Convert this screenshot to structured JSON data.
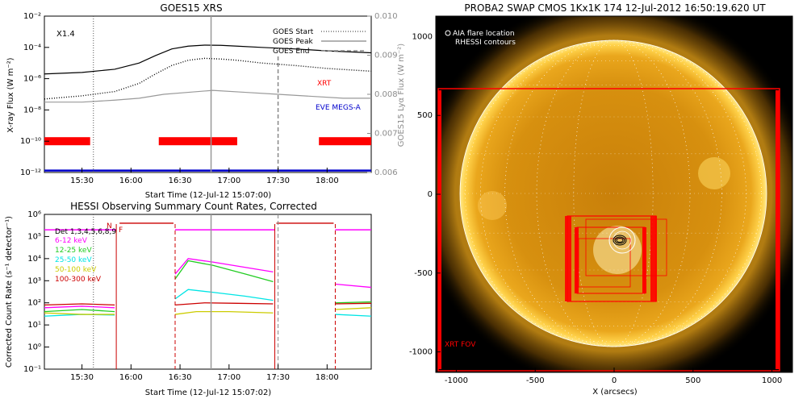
{
  "colors": {
    "red": "#ff0000",
    "blue": "#0000cc",
    "gray": "#999999",
    "magenta": "#ff00ff",
    "green": "#22cc22",
    "cyan": "#00e5e5",
    "yellow": "#cccc00",
    "darkred": "#cc0000",
    "swap_bg": "#000000",
    "swap_disk": "#e0a015"
  },
  "chart_data": [
    {
      "type": "line",
      "title": "GOES15 XRS",
      "xlabel": "Start Time (12-Jul-12 15:07:00)",
      "ylabel": "X-ray Flux (W m⁻²)",
      "ylabel_right": "GOES15 Lyα Flux (W m⁻²)",
      "y_scale": "log",
      "ylim": [
        1e-12,
        0.01
      ],
      "y2lim": [
        0.006,
        0.01
      ],
      "xlim": [
        "15:07",
        "18:27"
      ],
      "x_ticks": [
        "15:30",
        "16:00",
        "16:30",
        "17:00",
        "17:30",
        "18:00"
      ],
      "y_ticks": [
        "10⁻¹²",
        "10⁻¹⁰",
        "10⁻⁸",
        "10⁻⁶",
        "10⁻⁴",
        "10⁻²"
      ],
      "y2_ticks": [
        "0.006",
        "0.007",
        "0.008",
        "0.009",
        "0.010"
      ],
      "annotation": "X1.4",
      "legend": [
        "GOES Start",
        "GOES Peak",
        "GOES End"
      ],
      "legend_placement": "top-right",
      "markers": {
        "start": "15:37",
        "peak": "16:49",
        "end": "17:30"
      },
      "side_labels": [
        "XRT",
        "EVE MEGS-A"
      ],
      "series": [
        {
          "x": [
            "15:07",
            "15:30",
            "15:50",
            "16:05",
            "16:15",
            "16:25",
            "16:35",
            "16:45",
            "16:55",
            "17:05",
            "17:20",
            "17:40",
            "18:00",
            "18:27"
          ],
          "values": [
            2e-06,
            2.5e-06,
            4e-06,
            1e-05,
            3e-05,
            8e-05,
            0.00012,
            0.00014,
            0.000135,
            0.00012,
            0.0001,
            8e-05,
            6e-05,
            4.5e-05
          ]
        },
        {
          "x": [
            "15:07",
            "15:30",
            "15:50",
            "16:05",
            "16:15",
            "16:25",
            "16:35",
            "16:45",
            "16:55",
            "17:05",
            "17:20",
            "17:40",
            "18:00",
            "18:27"
          ],
          "values": [
            5e-08,
            8e-08,
            1.5e-07,
            5e-07,
            2e-06,
            7e-06,
            1.5e-05,
            2e-05,
            1.8e-05,
            1.5e-05,
            1e-05,
            7e-06,
            4.5e-06,
            3e-06
          ]
        },
        {
          "x": [
            "15:07",
            "15:30",
            "15:50",
            "16:05",
            "16:20",
            "16:35",
            "16:50",
            "17:10",
            "17:30",
            "17:50",
            "18:10",
            "18:27"
          ],
          "values": [
            0.0078,
            0.0078,
            0.00785,
            0.0079,
            0.008,
            0.00805,
            0.0081,
            0.00805,
            0.008,
            0.00795,
            0.0079,
            0.0079
          ]
        },
        {
          "x": [
            "15:07",
            "18:27"
          ],
          "values": [
            0.00605,
            0.00605
          ]
        }
      ],
      "bands": [
        [
          "15:07",
          "15:35"
        ],
        [
          "16:17",
          "17:05"
        ],
        [
          "17:55",
          "18:27"
        ]
      ]
    },
    {
      "type": "line",
      "title": "HESSI Observing Summary Count Rates, Corrected",
      "xlabel": "Start Time (12-Jul-12 15:07:02)",
      "ylabel": "Corrected Count Rate (s⁻¹ detector⁻¹)",
      "y_scale": "log",
      "ylim": [
        0.1,
        1000000.0
      ],
      "xlim": [
        "15:07",
        "18:27"
      ],
      "x_ticks": [
        "15:30",
        "16:00",
        "16:30",
        "17:00",
        "17:30",
        "18:00"
      ],
      "y_ticks": [
        "10⁻¹",
        "10⁰",
        "10¹",
        "10²",
        "10³",
        "10⁴",
        "10⁵",
        "10⁶"
      ],
      "legend": [
        "Det 1,3,4,5,6,8,9",
        "6-12 keV",
        "12-25 keV",
        "25-50 keV",
        "50-100 keV",
        "100-300 keV"
      ],
      "flags": [
        "N",
        "F"
      ],
      "gaps": [
        [
          "15:51",
          "16:27"
        ],
        [
          "17:28",
          "18:05"
        ]
      ],
      "series": [
        {
          "name": "6-12 keV",
          "x": [
            "15:07",
            "15:30",
            "15:50",
            "16:27",
            "16:35",
            "16:50",
            "17:10",
            "17:27",
            "18:05",
            "18:27"
          ],
          "values": [
            60,
            70,
            60,
            2000,
            10000,
            7000,
            4000,
            2500,
            700,
            500
          ]
        },
        {
          "name": "12-25 keV",
          "x": [
            "15:07",
            "15:30",
            "15:50",
            "16:27",
            "16:35",
            "16:50",
            "17:10",
            "17:27",
            "18:05",
            "18:27"
          ],
          "values": [
            40,
            50,
            40,
            1200,
            8000,
            5000,
            2000,
            900,
            100,
            110
          ]
        },
        {
          "name": "25-50 keV",
          "x": [
            "15:07",
            "15:30",
            "15:50",
            "16:27",
            "16:35",
            "16:50",
            "17:10",
            "17:27",
            "18:05",
            "18:27"
          ],
          "values": [
            25,
            30,
            28,
            150,
            400,
            300,
            200,
            130,
            30,
            25
          ]
        },
        {
          "name": "50-100 keV",
          "x": [
            "15:07",
            "15:30",
            "15:50",
            "16:27",
            "16:40",
            "17:00",
            "17:27",
            "18:05",
            "18:27"
          ],
          "values": [
            35,
            30,
            30,
            30,
            40,
            40,
            35,
            50,
            60
          ]
        },
        {
          "name": "100-300 keV",
          "x": [
            "15:07",
            "15:30",
            "15:50",
            "16:27",
            "16:45",
            "17:05",
            "17:27",
            "18:05",
            "18:27"
          ],
          "values": [
            80,
            90,
            80,
            80,
            100,
            95,
            90,
            90,
            95
          ]
        }
      ]
    },
    {
      "type": "scatter",
      "title": "PROBA2 SWAP CMOS 1Kx1K 174 12-Jul-2012 16:50:19.620 UT",
      "xlabel": "X (arcsecs)",
      "ylabel": "",
      "xlim": [
        -1130,
        1130
      ],
      "ylim": [
        -1130,
        1130
      ],
      "x_ticks": [
        "-1000",
        "-500",
        "0",
        "500",
        "1000"
      ],
      "y_ticks": [
        "-1000",
        "-500",
        "0",
        "500",
        "1000"
      ],
      "legend": [
        "AIA flare location",
        "RHESSI contours"
      ],
      "legend_placement": "top-left",
      "annotation": "XRT FOV",
      "flare_location": [
        -80,
        -250
      ]
    }
  ]
}
